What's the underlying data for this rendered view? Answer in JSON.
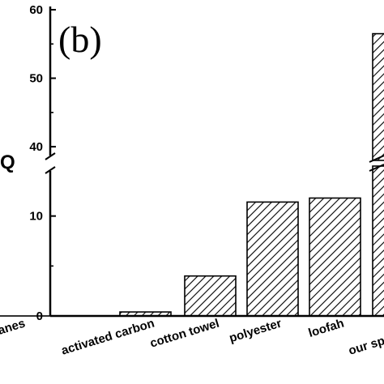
{
  "panel_label": "(b)",
  "chart_data": {
    "type": "bar",
    "ylabel": "Q",
    "categories": [
      "polyurethanes",
      "activated carbon",
      "cotton towel",
      "polyester",
      "loofah",
      "our sponge"
    ],
    "values": [
      0,
      0.4,
      4.0,
      11.4,
      11.8,
      56.5
    ],
    "highlight_color": "#e8191d",
    "highlight_index": 5,
    "axis_break": [
      15,
      38
    ],
    "yticks": [
      0,
      10,
      40,
      50,
      60
    ],
    "ylim_lower": [
      0,
      15
    ],
    "ylim_upper": [
      38,
      60
    ],
    "hatch": "diagonal"
  }
}
